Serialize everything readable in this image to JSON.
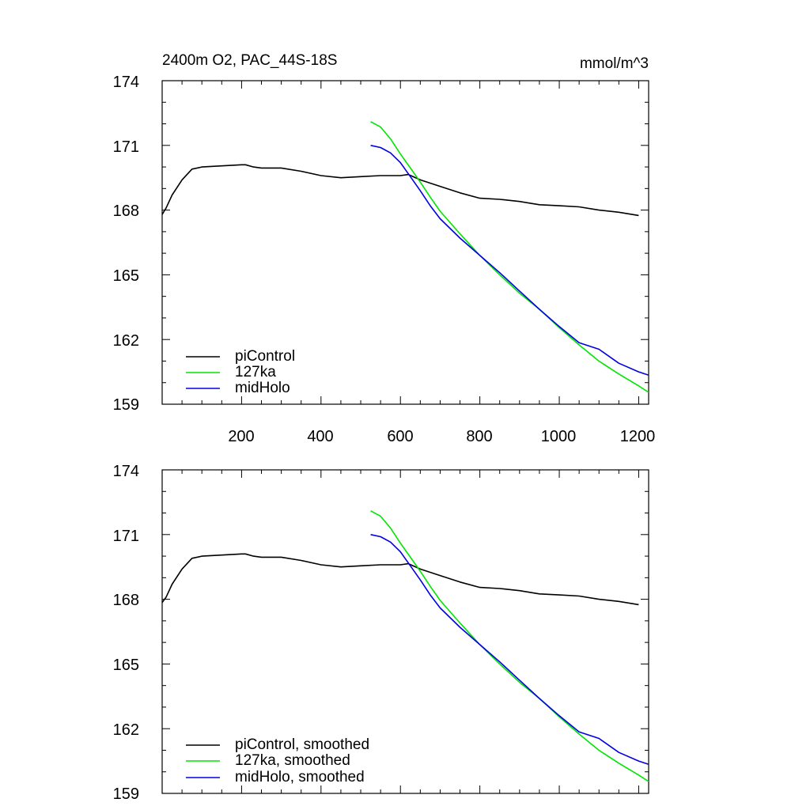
{
  "chart_data": [
    {
      "type": "line",
      "title": "2400m O2, PAC_44S-18S",
      "units": "mmol/m^3",
      "xlim": [
        0,
        1225
      ],
      "ylim": [
        159,
        174
      ],
      "yticks": [
        "174",
        "171",
        "168",
        "165",
        "162",
        "159"
      ],
      "xticks": [
        "200",
        "400",
        "600",
        "800",
        "1000",
        "1200"
      ],
      "legend_position": "bottom-left",
      "series": [
        {
          "name": "piControl",
          "color": "#000000",
          "points": [
            [
              0,
              167.8
            ],
            [
              10,
              168.1
            ],
            [
              25,
              168.7
            ],
            [
              50,
              169.4
            ],
            [
              75,
              169.9
            ],
            [
              100,
              170.0
            ],
            [
              150,
              170.05
            ],
            [
              200,
              170.1
            ],
            [
              210,
              170.1
            ],
            [
              230,
              170.0
            ],
            [
              250,
              169.95
            ],
            [
              300,
              169.95
            ],
            [
              350,
              169.8
            ],
            [
              400,
              169.6
            ],
            [
              450,
              169.5
            ],
            [
              500,
              169.55
            ],
            [
              550,
              169.6
            ],
            [
              600,
              169.6
            ],
            [
              620,
              169.65
            ],
            [
              650,
              169.4
            ],
            [
              700,
              169.1
            ],
            [
              750,
              168.8
            ],
            [
              800,
              168.55
            ],
            [
              850,
              168.5
            ],
            [
              900,
              168.4
            ],
            [
              950,
              168.25
            ],
            [
              1000,
              168.2
            ],
            [
              1050,
              168.15
            ],
            [
              1100,
              168.0
            ],
            [
              1150,
              167.9
            ],
            [
              1200,
              167.75
            ]
          ]
        },
        {
          "name": "127ka",
          "color": "#00e600",
          "points": [
            [
              525,
              172.1
            ],
            [
              550,
              171.85
            ],
            [
              575,
              171.3
            ],
            [
              600,
              170.6
            ],
            [
              625,
              169.95
            ],
            [
              650,
              169.3
            ],
            [
              675,
              168.6
            ],
            [
              700,
              167.95
            ],
            [
              750,
              166.9
            ],
            [
              800,
              165.9
            ],
            [
              850,
              165.0
            ],
            [
              900,
              164.15
            ],
            [
              950,
              163.4
            ],
            [
              1000,
              162.55
            ],
            [
              1050,
              161.75
            ],
            [
              1100,
              161.0
            ],
            [
              1150,
              160.4
            ],
            [
              1200,
              159.85
            ],
            [
              1225,
              159.55
            ]
          ]
        },
        {
          "name": "midHolo",
          "color": "#0000e6",
          "points": [
            [
              525,
              171.0
            ],
            [
              550,
              170.9
            ],
            [
              575,
              170.65
            ],
            [
              600,
              170.2
            ],
            [
              625,
              169.55
            ],
            [
              650,
              168.9
            ],
            [
              675,
              168.2
            ],
            [
              700,
              167.6
            ],
            [
              750,
              166.7
            ],
            [
              800,
              165.9
            ],
            [
              850,
              165.1
            ],
            [
              900,
              164.25
            ],
            [
              950,
              163.4
            ],
            [
              1000,
              162.6
            ],
            [
              1050,
              161.85
            ],
            [
              1100,
              161.55
            ],
            [
              1150,
              160.9
            ],
            [
              1200,
              160.5
            ],
            [
              1225,
              160.35
            ]
          ]
        }
      ]
    },
    {
      "type": "line",
      "xlim": [
        0,
        1225
      ],
      "ylim": [
        159,
        174
      ],
      "yticks": [
        "174",
        "171",
        "168",
        "165",
        "162",
        "159"
      ],
      "legend_position": "bottom-left",
      "series": [
        {
          "name": "piControl, smoothed",
          "color": "#000000",
          "points": [
            [
              0,
              167.85
            ],
            [
              10,
              168.1
            ],
            [
              25,
              168.7
            ],
            [
              50,
              169.4
            ],
            [
              75,
              169.9
            ],
            [
              100,
              170.0
            ],
            [
              150,
              170.05
            ],
            [
              200,
              170.1
            ],
            [
              210,
              170.1
            ],
            [
              230,
              170.0
            ],
            [
              250,
              169.95
            ],
            [
              300,
              169.95
            ],
            [
              350,
              169.8
            ],
            [
              400,
              169.6
            ],
            [
              450,
              169.5
            ],
            [
              500,
              169.55
            ],
            [
              550,
              169.6
            ],
            [
              600,
              169.6
            ],
            [
              620,
              169.65
            ],
            [
              650,
              169.4
            ],
            [
              700,
              169.1
            ],
            [
              750,
              168.8
            ],
            [
              800,
              168.55
            ],
            [
              850,
              168.5
            ],
            [
              900,
              168.4
            ],
            [
              950,
              168.25
            ],
            [
              1000,
              168.2
            ],
            [
              1050,
              168.15
            ],
            [
              1100,
              168.0
            ],
            [
              1150,
              167.9
            ],
            [
              1200,
              167.75
            ]
          ]
        },
        {
          "name": "127ka, smoothed",
          "color": "#00e600",
          "points": [
            [
              525,
              172.1
            ],
            [
              550,
              171.85
            ],
            [
              575,
              171.3
            ],
            [
              600,
              170.6
            ],
            [
              625,
              169.95
            ],
            [
              650,
              169.3
            ],
            [
              675,
              168.6
            ],
            [
              700,
              167.95
            ],
            [
              750,
              166.9
            ],
            [
              800,
              165.9
            ],
            [
              850,
              165.0
            ],
            [
              900,
              164.15
            ],
            [
              950,
              163.4
            ],
            [
              1000,
              162.55
            ],
            [
              1050,
              161.75
            ],
            [
              1100,
              161.0
            ],
            [
              1150,
              160.4
            ],
            [
              1200,
              159.85
            ],
            [
              1225,
              159.55
            ]
          ]
        },
        {
          "name": "midHolo, smoothed",
          "color": "#0000e6",
          "points": [
            [
              525,
              171.0
            ],
            [
              550,
              170.9
            ],
            [
              575,
              170.65
            ],
            [
              600,
              170.2
            ],
            [
              625,
              169.55
            ],
            [
              650,
              168.9
            ],
            [
              675,
              168.2
            ],
            [
              700,
              167.6
            ],
            [
              750,
              166.7
            ],
            [
              800,
              165.9
            ],
            [
              850,
              165.1
            ],
            [
              900,
              164.25
            ],
            [
              950,
              163.4
            ],
            [
              1000,
              162.6
            ],
            [
              1050,
              161.85
            ],
            [
              1100,
              161.55
            ],
            [
              1150,
              160.9
            ],
            [
              1200,
              160.5
            ],
            [
              1225,
              160.35
            ]
          ]
        }
      ]
    }
  ]
}
